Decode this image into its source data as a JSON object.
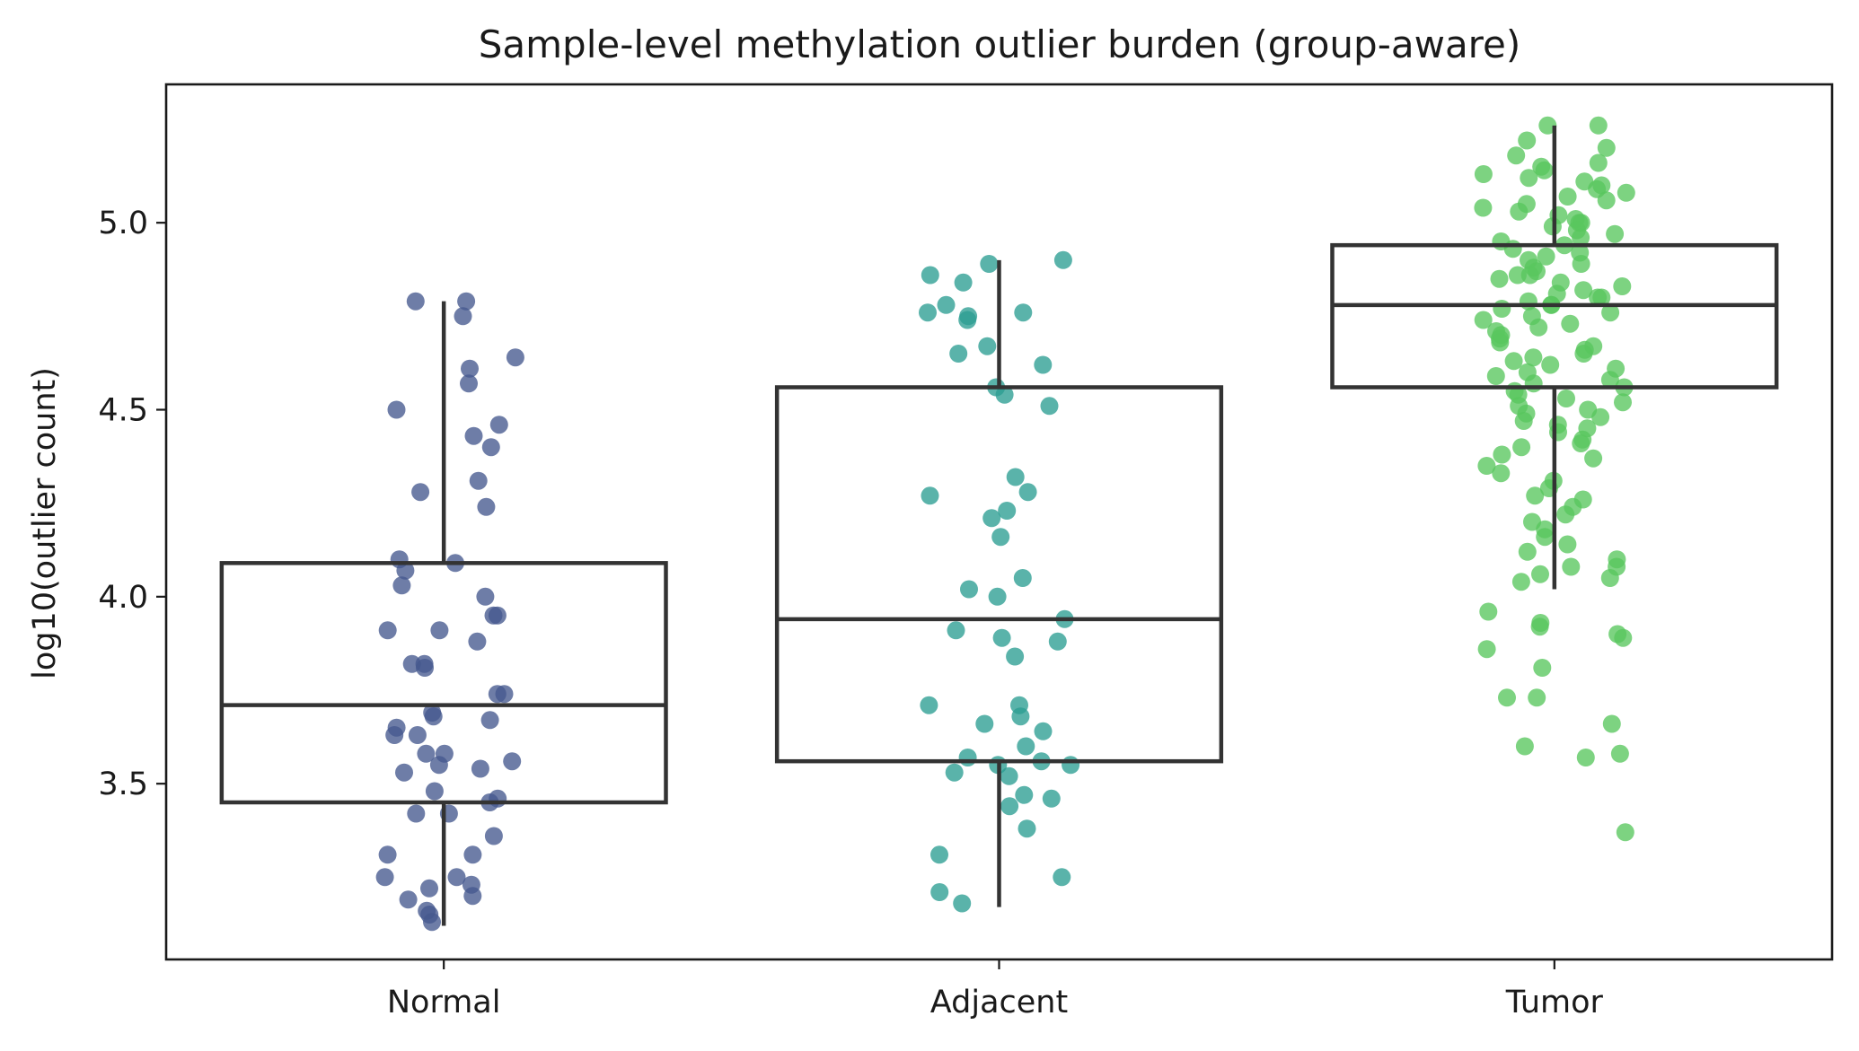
{
  "chart_data": {
    "type": "box",
    "title": "Sample-level methylation outlier burden (group-aware)",
    "xlabel": "",
    "ylabel": "log10(outlier count)",
    "ylim": [
      3.03,
      5.37
    ],
    "yticks": [
      3.5,
      4.0,
      4.5,
      5.0
    ],
    "ytick_labels": [
      "3.5",
      "4.0",
      "4.5",
      "5.0"
    ],
    "grid": false,
    "legend": "none",
    "categories": [
      "Normal",
      "Adjacent",
      "Tumor"
    ],
    "colors": {
      "Normal": "#45598e",
      "Adjacent": "#2c9e92",
      "Tumor": "#58c75e"
    },
    "boxes": [
      {
        "name": "Normal",
        "whisker_low": 3.12,
        "q1": 3.45,
        "median": 3.71,
        "q3": 4.09,
        "whisker_high": 4.79
      },
      {
        "name": "Adjacent",
        "whisker_low": 3.17,
        "q1": 3.56,
        "median": 3.94,
        "q3": 4.56,
        "whisker_high": 4.9
      },
      {
        "name": "Tumor",
        "whisker_low": 4.02,
        "q1": 4.56,
        "median": 4.78,
        "q3": 4.94,
        "whisker_high": 5.26
      }
    ],
    "points": {
      "Normal": [
        4.79,
        4.79,
        4.75,
        4.64,
        4.61,
        4.57,
        4.5,
        4.46,
        4.43,
        4.4,
        4.31,
        4.28,
        4.24,
        4.1,
        4.09,
        4.07,
        4.03,
        4.0,
        3.95,
        3.95,
        3.91,
        3.91,
        3.88,
        3.82,
        3.82,
        3.81,
        3.74,
        3.74,
        3.69,
        3.68,
        3.67,
        3.65,
        3.63,
        3.63,
        3.58,
        3.58,
        3.56,
        3.55,
        3.54,
        3.53,
        3.48,
        3.46,
        3.45,
        3.42,
        3.42,
        3.36,
        3.31,
        3.31,
        3.25,
        3.25,
        3.23,
        3.22,
        3.2,
        3.19,
        3.16,
        3.15,
        3.13
      ],
      "Adjacent": [
        4.9,
        4.89,
        4.86,
        4.84,
        4.78,
        4.76,
        4.76,
        4.75,
        4.74,
        4.67,
        4.65,
        4.62,
        4.56,
        4.54,
        4.51,
        4.32,
        4.28,
        4.27,
        4.23,
        4.21,
        4.16,
        4.05,
        4.02,
        4.0,
        3.94,
        3.91,
        3.89,
        3.88,
        3.84,
        3.71,
        3.71,
        3.68,
        3.66,
        3.64,
        3.6,
        3.57,
        3.56,
        3.55,
        3.55,
        3.53,
        3.52,
        3.47,
        3.46,
        3.44,
        3.38,
        3.31,
        3.25,
        3.21,
        3.18
      ],
      "Tumor": [
        5.26,
        5.26,
        5.22,
        5.2,
        5.18,
        5.16,
        5.15,
        5.14,
        5.13,
        5.12,
        5.11,
        5.1,
        5.09,
        5.08,
        5.07,
        5.06,
        5.05,
        5.04,
        5.03,
        5.02,
        5.01,
        5.0,
        5.0,
        4.99,
        4.98,
        4.97,
        4.96,
        4.95,
        4.94,
        4.93,
        4.92,
        4.91,
        4.9,
        4.89,
        4.88,
        4.87,
        4.86,
        4.86,
        4.85,
        4.84,
        4.83,
        4.82,
        4.81,
        4.8,
        4.8,
        4.79,
        4.78,
        4.78,
        4.77,
        4.76,
        4.75,
        4.74,
        4.73,
        4.72,
        4.71,
        4.7,
        4.69,
        4.68,
        4.67,
        4.66,
        4.65,
        4.64,
        4.63,
        4.62,
        4.61,
        4.6,
        4.59,
        4.58,
        4.57,
        4.56,
        4.55,
        4.54,
        4.53,
        4.52,
        4.51,
        4.5,
        4.49,
        4.48,
        4.47,
        4.46,
        4.45,
        4.44,
        4.42,
        4.41,
        4.4,
        4.38,
        4.37,
        4.35,
        4.33,
        4.31,
        4.29,
        4.27,
        4.26,
        4.24,
        4.22,
        4.2,
        4.18,
        4.16,
        4.14,
        4.12,
        4.1,
        4.08,
        4.08,
        4.06,
        4.05,
        4.04,
        3.96,
        3.93,
        3.92,
        3.9,
        3.89,
        3.86,
        3.81,
        3.73,
        3.73,
        3.66,
        3.6,
        3.58,
        3.57,
        3.37
      ]
    }
  }
}
